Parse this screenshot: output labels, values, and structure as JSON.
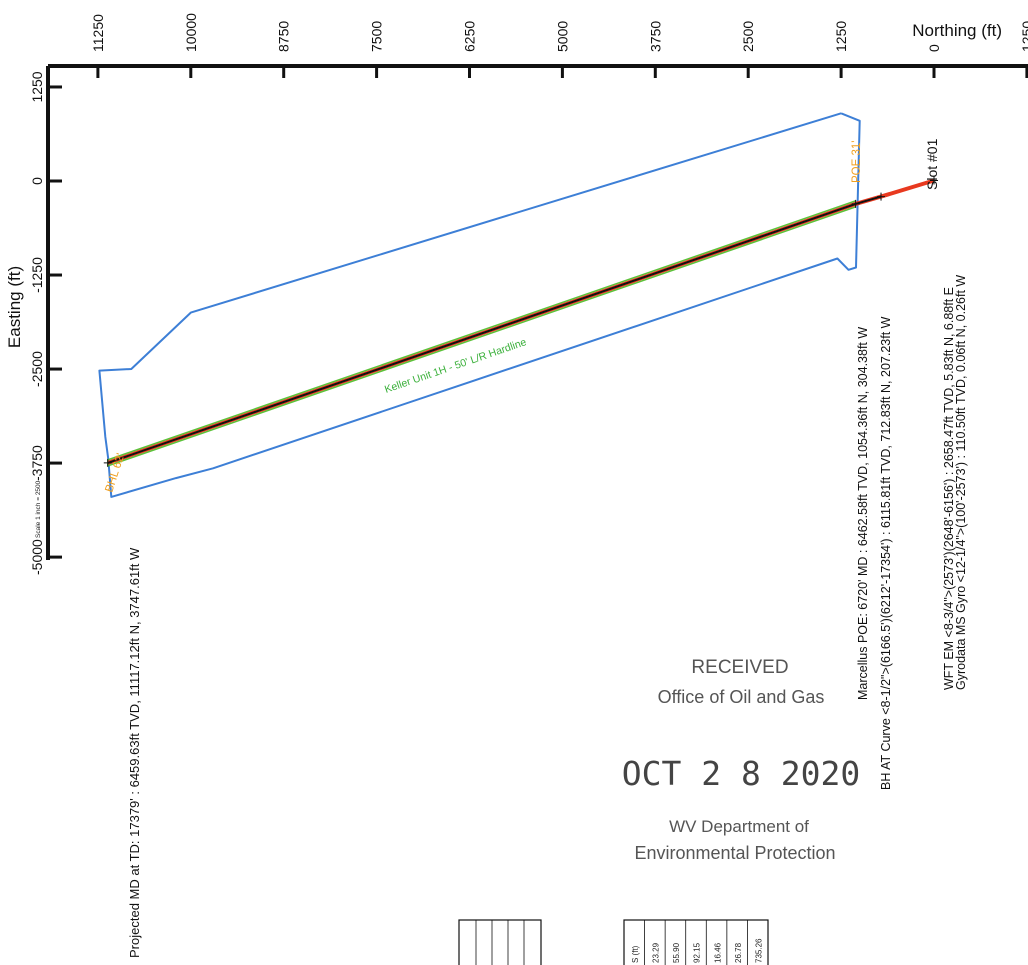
{
  "chart_data": {
    "type": "line",
    "x_axis": {
      "label": "Northing (ft)",
      "ticks": [
        11250,
        10000,
        8750,
        7500,
        6250,
        5000,
        3750,
        2500,
        1250,
        0,
        -1250
      ],
      "tick_labels": [
        "11250",
        "10000",
        "8750",
        "7500",
        "6250",
        "5000",
        "3750",
        "2500",
        "1250",
        "0",
        "1250"
      ],
      "range": [
        11250,
        -1250
      ]
    },
    "y_axis": {
      "label": "Easting (ft)",
      "ticks": [
        1250,
        0,
        -1250,
        -2500,
        -3750,
        -5000
      ],
      "tick_labels": [
        "1250",
        "0",
        "-1250",
        "-2500",
        "-3750",
        "-5000"
      ],
      "range": [
        1250,
        -5000
      ]
    },
    "scale_label": "Scale 1 inch = 2500",
    "series": [
      {
        "color": "#e8391f",
        "points": [
          [
            0,
            6.88
          ],
          [
            712.83,
            -207.23
          ],
          [
            1054.36,
            -304.38
          ],
          [
            11117.12,
            -3747.61
          ]
        ]
      },
      {
        "color": "#111111",
        "points": [
          [
            712.83,
            -207.23
          ],
          [
            1054.36,
            -304.38
          ],
          [
            11117.12,
            -3747.61
          ]
        ]
      },
      {
        "name": "Keller Unit 1H - 50' L/R Hardline",
        "color": "#5cc23a",
        "points": [
          [
            1054.36,
            -264.38
          ],
          [
            11117.12,
            -3707.61
          ],
          [
            11117.12,
            -3787.61
          ],
          [
            1054.36,
            -344.38
          ]
        ]
      },
      {
        "color": "#3d7fd6",
        "points": [
          [
            1250,
            900
          ],
          [
            10000,
            -1750
          ],
          [
            10800,
            -2500
          ],
          [
            11230,
            -2520
          ],
          [
            11150,
            -3400
          ],
          [
            11110,
            -3700
          ],
          [
            11070,
            -4200
          ],
          [
            10200,
            -3950
          ],
          [
            9700,
            -3820
          ],
          [
            1300,
            -1030
          ],
          [
            1150,
            -1180
          ],
          [
            1050,
            -1150
          ],
          [
            1000,
            800
          ],
          [
            1250,
            900
          ]
        ]
      }
    ],
    "annotations": [
      {
        "text": "Slot #01",
        "color": "#111111"
      },
      {
        "text": "WFT EM <8-3/4\">(2573')(2648'-6156') : 2658.47ft TVD, 5.83ft N, 6.88ft E",
        "color": "#111111"
      },
      {
        "text": "Gyrodata MS Gyro <12-1/4\">(100'-2573') : 110.50ft TVD, 0.06ft N, 0.26ft W",
        "color": "#111111"
      },
      {
        "text": "BH AT Curve <8-1/2\">(6166.5')(6212'-17354') : 6115.81ft TVD, 712.83ft N, 207.23ft W",
        "color": "#111111"
      },
      {
        "text": "Marcellus POE: 6720' MD : 6462.58ft TVD, 1054.36ft N, 304.38ft W",
        "color": "#111111"
      },
      {
        "text": "POE 31'",
        "color": "#f0a020"
      },
      {
        "text": "BHL 62'",
        "color": "#f0a020"
      },
      {
        "text": "Projected MD at TD: 17379' : 6459.63ft TVD, 11117.12ft N, 3747.61ft W",
        "color": "#111111"
      },
      {
        "text": "Keller Unit 1H - 50' L/R Hardline",
        "color": "#3ab03a"
      }
    ]
  },
  "stamp": {
    "line1": "RECEIVED",
    "line2": "Office of Oil and Gas",
    "date": "OCT 2 8 2020",
    "line3": "WV Department of",
    "line4": "Environmental Protection"
  },
  "table_fragment": [
    "S (ft)",
    "23.29",
    "55.90",
    "92.15",
    "16.46",
    "26.78",
    "735.26"
  ]
}
